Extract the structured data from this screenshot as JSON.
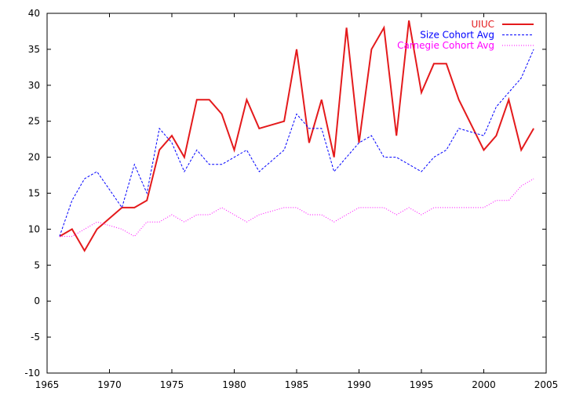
{
  "chart_data": {
    "type": "line",
    "title": "",
    "xlabel": "",
    "ylabel": "",
    "xlim": [
      1965,
      2005
    ],
    "ylim": [
      -10,
      40
    ],
    "xticks": [
      1965,
      1970,
      1975,
      1980,
      1985,
      1990,
      1995,
      2000,
      2005
    ],
    "yticks": [
      -10,
      -5,
      0,
      5,
      10,
      15,
      20,
      25,
      30,
      35,
      40
    ],
    "grid": false,
    "legend_position": "top-right",
    "series": [
      {
        "name": "UIUC",
        "color": "#e41a1c",
        "style": "solid",
        "x": [
          1966,
          1967,
          1968,
          1969,
          1970,
          1971,
          1972,
          1973,
          1974,
          1975,
          1976,
          1977,
          1978,
          1979,
          1980,
          1981,
          1982,
          1983,
          1984,
          1985,
          1986,
          1987,
          1988,
          1989,
          1990,
          1991,
          1992,
          1993,
          1994,
          1995,
          1996,
          1997,
          1998,
          1999,
          2000,
          2001,
          2002,
          2003,
          2004
        ],
        "y": [
          9,
          10,
          7,
          10,
          11.5,
          13,
          13,
          14,
          21,
          23,
          20,
          28,
          28,
          26,
          21,
          28,
          24,
          24.5,
          25,
          35,
          22,
          28,
          20,
          38,
          22,
          35,
          38,
          23,
          39,
          29,
          33,
          33,
          28,
          24.5,
          21,
          23,
          28,
          21,
          24
        ]
      },
      {
        "name": "Size Cohort Avg",
        "color": "#0000ff",
        "style": "dashed",
        "x": [
          1966,
          1967,
          1968,
          1969,
          1970,
          1971,
          1972,
          1973,
          1974,
          1975,
          1976,
          1977,
          1978,
          1979,
          1980,
          1981,
          1982,
          1983,
          1984,
          1985,
          1986,
          1987,
          1988,
          1989,
          1990,
          1991,
          1992,
          1993,
          1994,
          1995,
          1996,
          1997,
          1998,
          1999,
          2000,
          2001,
          2002,
          2003,
          2004
        ],
        "y": [
          9,
          14,
          17,
          18,
          15.5,
          13,
          19,
          15,
          24,
          22,
          18,
          21,
          19,
          19,
          20,
          21,
          18,
          19.5,
          21,
          26,
          24,
          24,
          18,
          20,
          22,
          23,
          20,
          20,
          19,
          18,
          20,
          21,
          24,
          23.5,
          23,
          27,
          29,
          31,
          35
        ]
      },
      {
        "name": "Carnegie Cohort Avg",
        "color": "#ff00ff",
        "style": "dotted",
        "x": [
          1966,
          1967,
          1968,
          1969,
          1970,
          1971,
          1972,
          1973,
          1974,
          1975,
          1976,
          1977,
          1978,
          1979,
          1980,
          1981,
          1982,
          1983,
          1984,
          1985,
          1986,
          1987,
          1988,
          1989,
          1990,
          1991,
          1992,
          1993,
          1994,
          1995,
          1996,
          1997,
          1998,
          1999,
          2000,
          2001,
          2002,
          2003,
          2004
        ],
        "y": [
          9,
          9,
          10,
          11,
          10.5,
          10,
          9,
          11,
          11,
          12,
          11,
          12,
          12,
          13,
          12,
          11,
          12,
          12.5,
          13,
          13,
          12,
          12,
          11,
          12,
          13,
          13,
          13,
          12,
          13,
          12,
          13,
          13,
          13,
          13,
          13,
          14,
          14,
          16,
          17
        ]
      }
    ]
  }
}
